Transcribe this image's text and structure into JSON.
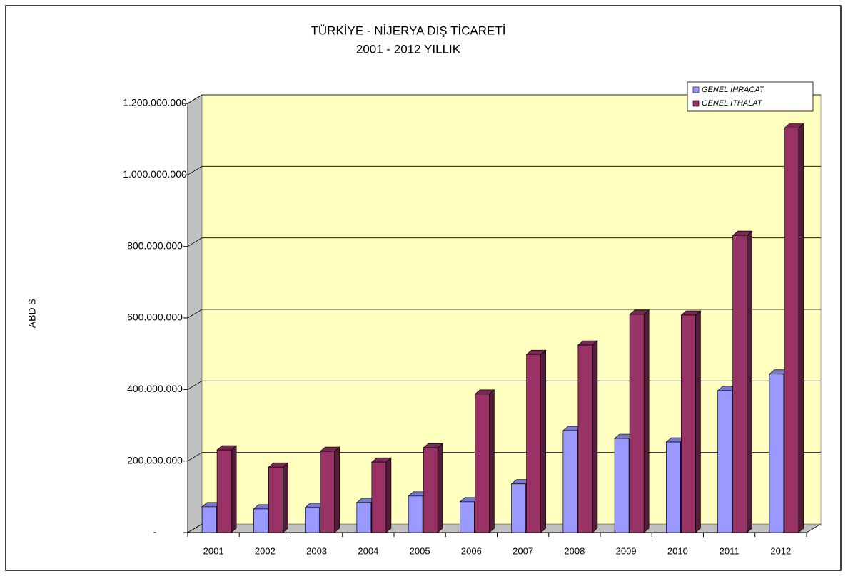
{
  "chart_data": {
    "type": "bar",
    "title": "TÜRKİYE - NİJERYA DIŞ TİCARETİ",
    "subtitle": "2001 - 2012 YILLIK",
    "y_label": "ABD $",
    "categories": [
      "2001",
      "2002",
      "2003",
      "2004",
      "2005",
      "2006",
      "2007",
      "2008",
      "2009",
      "2010",
      "2011",
      "2012"
    ],
    "series": [
      {
        "name": "GENEL İHRACAT",
        "color": "#9999ff",
        "values": [
          72000000,
          66000000,
          70000000,
          84000000,
          102000000,
          86000000,
          136000000,
          285000000,
          263000000,
          253000000,
          397000000,
          443000000
        ]
      },
      {
        "name": "GENEL İTHALAT",
        "color": "#993366",
        "values": [
          231000000,
          183000000,
          227000000,
          197000000,
          237000000,
          387000000,
          498000000,
          524000000,
          610000000,
          608000000,
          831000000,
          1131000000
        ]
      }
    ],
    "ylim": [
      0,
      1200000000
    ],
    "yticks": [
      {
        "value": 0,
        "label": "-"
      },
      {
        "value": 200000000,
        "label": "200.000.000"
      },
      {
        "value": 400000000,
        "label": "400.000.000"
      },
      {
        "value": 600000000,
        "label": "600.000.000"
      },
      {
        "value": 800000000,
        "label": "800.000.000"
      },
      {
        "value": 1000000000,
        "label": "1.000.000.000"
      },
      {
        "value": 1200000000,
        "label": "1.200.000.000"
      }
    ],
    "grid": true,
    "legend": "top-right",
    "wall_color": "#ffffc0"
  }
}
